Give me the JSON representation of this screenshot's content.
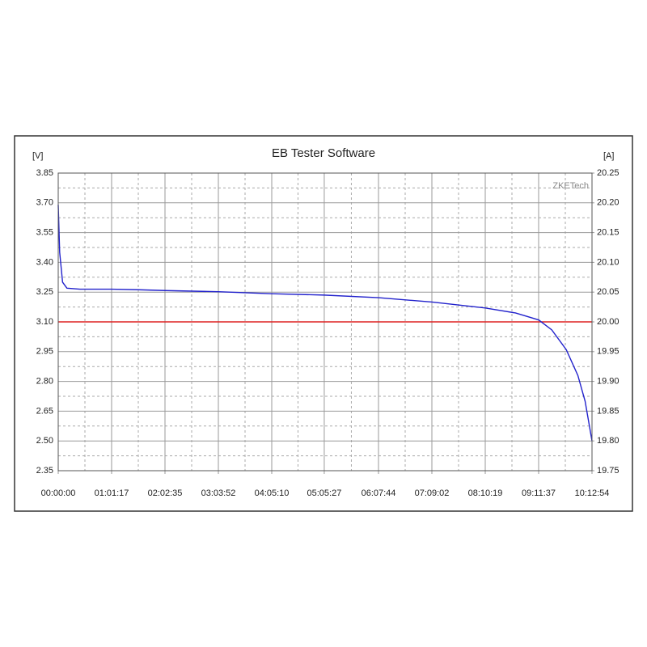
{
  "chart_data": {
    "type": "line",
    "title": "EB Tester Software",
    "y_label": "[V]",
    "y2_label": "[A]",
    "annotation": "ZKETech",
    "x": [
      0,
      100,
      300,
      600,
      1500,
      3677,
      5500,
      7355,
      11032,
      14710,
      18327,
      22064,
      25742,
      29419,
      31500,
      33097,
      34000,
      35000,
      35800,
      36300,
      36774
    ],
    "series": [
      {
        "color": "#2222cc",
        "values": [
          3.69,
          3.45,
          3.3,
          3.27,
          3.265,
          3.265,
          3.262,
          3.258,
          3.252,
          3.242,
          3.235,
          3.222,
          3.2,
          3.17,
          3.145,
          3.11,
          3.06,
          2.96,
          2.83,
          2.7,
          2.5
        ]
      },
      {
        "color": "#dd2222",
        "axis": "y2",
        "values": [
          20,
          20,
          20,
          20,
          20,
          20,
          20,
          20,
          20,
          20,
          20,
          20,
          20,
          20,
          20,
          20,
          20,
          20,
          20,
          20,
          20
        ]
      }
    ],
    "xlim": [
      0,
      36774
    ],
    "xticks": [
      {
        "value": 0,
        "label": "00:00:00"
      },
      {
        "value": 3677,
        "label": "01:01:17"
      },
      {
        "value": 7355,
        "label": "02:02:35"
      },
      {
        "value": 11032,
        "label": "03:03:52"
      },
      {
        "value": 14710,
        "label": "04:05:10"
      },
      {
        "value": 18327,
        "label": "05:05:27"
      },
      {
        "value": 22064,
        "label": "06:07:44"
      },
      {
        "value": 25742,
        "label": "07:09:02"
      },
      {
        "value": 29419,
        "label": "08:10:19"
      },
      {
        "value": 33097,
        "label": "09:11:37"
      },
      {
        "value": 36774,
        "label": "10:12:54"
      }
    ],
    "ylim": [
      2.35,
      3.85
    ],
    "yticks": [
      2.35,
      {
        "value": 2.5,
        "label": "2.50"
      },
      2.65,
      {
        "value": 2.8,
        "label": "2.80"
      },
      2.95,
      {
        "value": 3.1,
        "label": "3.10"
      },
      3.25,
      {
        "value": 3.4,
        "label": "3.40"
      },
      3.55,
      {
        "value": 3.7,
        "label": "3.70"
      },
      3.85
    ],
    "y2lim": [
      19.75,
      20.25
    ],
    "y2ticks": [
      19.75,
      {
        "value": 19.8,
        "label": "19.80"
      },
      19.85,
      {
        "value": 19.9,
        "label": "19.90"
      },
      19.95,
      {
        "value": 20,
        "label": "20.00"
      },
      20.05,
      {
        "value": 20.1,
        "label": "20.10"
      },
      20.15,
      {
        "value": 20.2,
        "label": "20.20"
      },
      20.25
    ],
    "grid": true
  }
}
